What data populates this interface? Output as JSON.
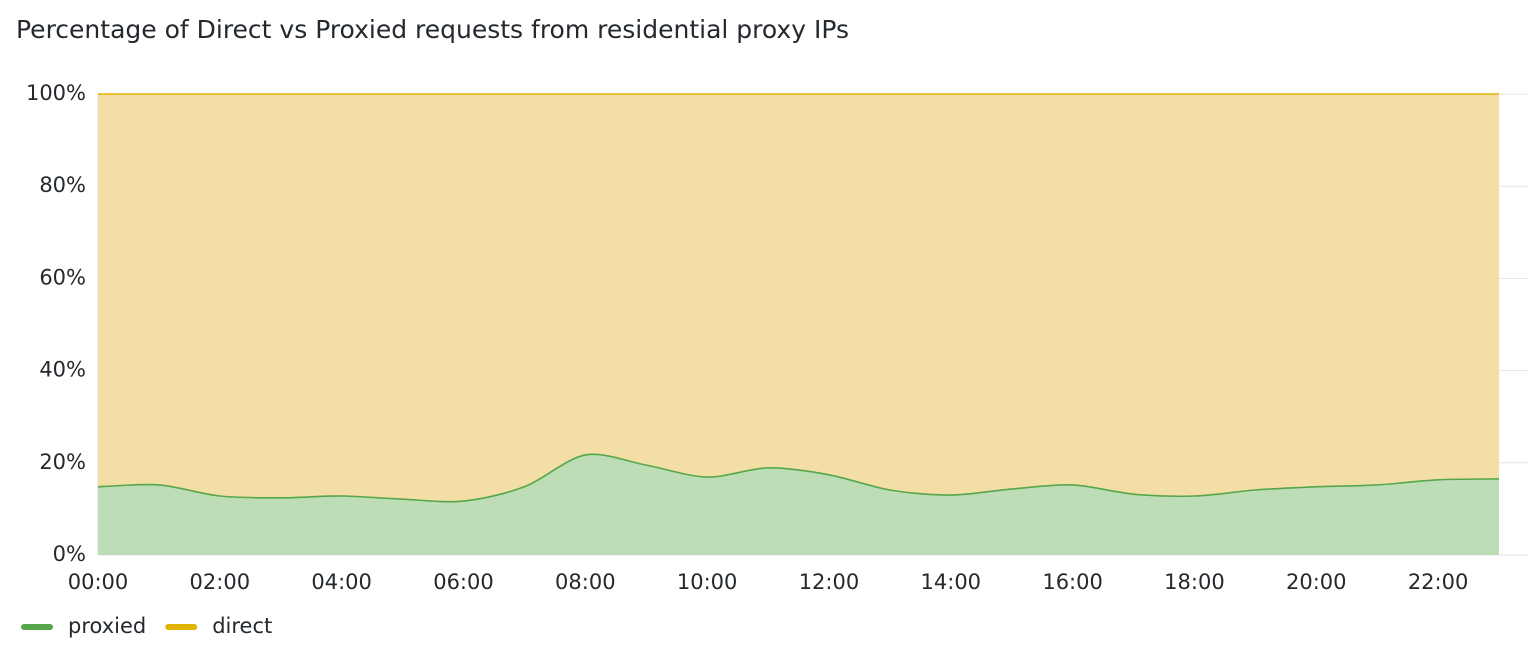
{
  "chart_data": {
    "type": "stacked-area",
    "title": "Percentage of Direct vs Proxied requests from residential proxy IPs",
    "categories": [
      "00:00",
      null,
      "02:00",
      null,
      "04:00",
      null,
      "06:00",
      null,
      "08:00",
      null,
      "10:00",
      null,
      "12:00",
      null,
      "14:00",
      null,
      "16:00",
      null,
      "18:00",
      null,
      "20:00",
      null,
      "22:00",
      null
    ],
    "series": [
      {
        "name": "proxied",
        "color": "#56a64b",
        "values": [
          14.8,
          15.2,
          12.8,
          12.4,
          12.8,
          12.1,
          11.7,
          14.8,
          21.7,
          19.5,
          16.9,
          18.9,
          17.4,
          14.1,
          13.0,
          14.3,
          15.2,
          13.2,
          12.8,
          14.1,
          14.8,
          15.2,
          16.3,
          16.5
        ]
      },
      {
        "name": "direct",
        "color": "#e0b400",
        "values": [
          85.2,
          84.8,
          87.2,
          87.6,
          87.2,
          87.9,
          88.3,
          85.2,
          78.3,
          80.5,
          83.1,
          81.1,
          82.6,
          85.9,
          87.0,
          85.7,
          84.8,
          86.8,
          87.2,
          85.9,
          85.2,
          84.8,
          83.7,
          83.5
        ]
      }
    ],
    "ylim": [
      0,
      100
    ],
    "yticks": [
      {
        "value": 0,
        "label": "0%"
      },
      {
        "value": 20,
        "label": "20%"
      },
      {
        "value": 40,
        "label": "40%"
      },
      {
        "value": 60,
        "label": "60%"
      },
      {
        "value": 80,
        "label": "80%"
      },
      {
        "value": 100,
        "label": "100%"
      }
    ],
    "grid": true,
    "legend": "bottom-left"
  }
}
